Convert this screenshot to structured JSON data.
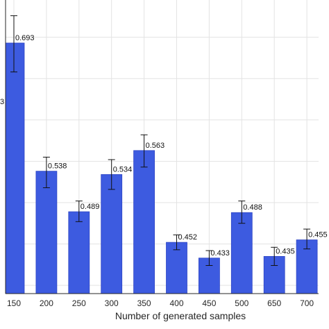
{
  "chart_data": {
    "type": "bar",
    "title": "",
    "xlabel": "Number of generated samples",
    "ylabel": "",
    "categories": [
      "150",
      "200",
      "250",
      "300",
      "350",
      "400",
      "450",
      "500",
      "650",
      "700"
    ],
    "values": [
      0.693,
      0.538,
      0.489,
      0.534,
      0.563,
      0.452,
      0.433,
      0.488,
      0.435,
      0.455
    ],
    "data_labels": [
      "0.693",
      "0.538",
      "0.489",
      "0.534",
      "0.563",
      "0.452",
      "0.433",
      "0.488",
      "0.435",
      "0.455"
    ],
    "error_low": [
      0.658,
      0.518,
      0.477,
      0.516,
      0.543,
      0.443,
      0.424,
      0.475,
      0.424,
      0.444
    ],
    "error_high": [
      0.726,
      0.555,
      0.502,
      0.552,
      0.582,
      0.461,
      0.442,
      0.502,
      0.446,
      0.468
    ],
    "partial_left_label": "3",
    "ylim": [
      0.39,
      0.745
    ],
    "grid": true,
    "colors": {
      "bar": "#3d5be0",
      "bar_edge": "#2f46c4",
      "grid": "#e3e3e3",
      "axis": "#262626",
      "error": "#111111"
    }
  }
}
